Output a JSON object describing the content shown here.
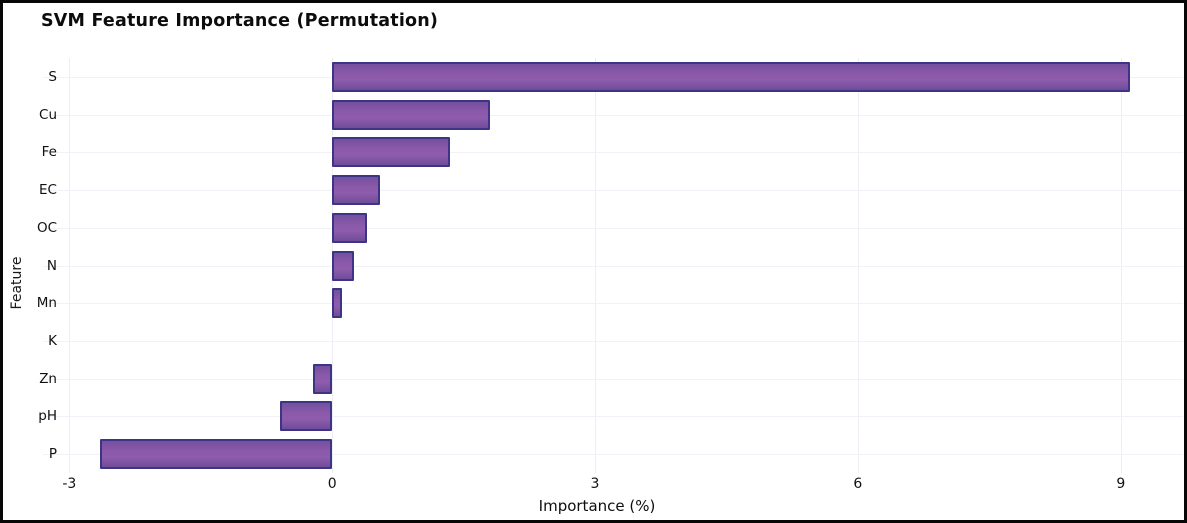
{
  "chart_data": {
    "type": "bar",
    "orientation": "horizontal",
    "title": "SVM Feature Importance (Permutation)",
    "xlabel": "Importance (%)",
    "ylabel": "Feature",
    "categories": [
      "S",
      "Cu",
      "Fe",
      "EC",
      "OC",
      "N",
      "Mn",
      "K",
      "Zn",
      "pH",
      "P"
    ],
    "values": [
      9.1,
      1.8,
      1.35,
      0.55,
      0.4,
      0.25,
      0.11,
      0.0,
      -0.22,
      -0.6,
      -2.65
    ],
    "xlim": [
      -3.3,
      9.71
    ],
    "xticks": [
      -3,
      0,
      3,
      6,
      9
    ],
    "legend": null,
    "grid": true,
    "colors": {
      "bar_fill": "#8b57a9",
      "bar_edge": "#3c3585",
      "gridline": "#f1edf6",
      "background": "#ffffff",
      "figure_border": "#070707"
    }
  }
}
